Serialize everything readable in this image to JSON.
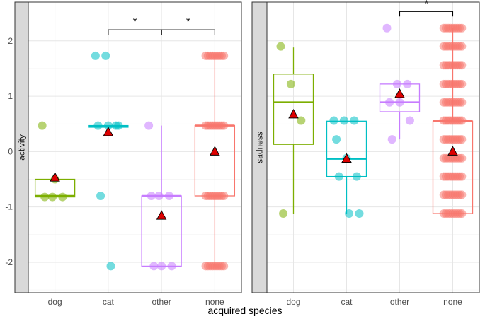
{
  "chart_data": {
    "type": "box",
    "xlabel": "acquired species",
    "categories": [
      "dog",
      "cat",
      "other",
      "none"
    ],
    "colors": {
      "dog": "#7cae00",
      "cat": "#00bfc4",
      "other": "#c77cff",
      "none": "#f8766d"
    },
    "mean_marker_color": "#dd0000",
    "panels": [
      {
        "name": "activity",
        "strip_label": "activity",
        "ylim": [
          -2.55,
          2.7
        ],
        "yticks": [
          -2,
          -1,
          0,
          1,
          2
        ],
        "ytick_labels": [
          "-2",
          "-1",
          "0",
          "1",
          "2"
        ],
        "groups": [
          {
            "category": "dog",
            "q1": -0.82,
            "median": -0.8,
            "q3": -0.5,
            "wlo": -0.82,
            "whi": -0.5,
            "mean": -0.47,
            "points": [
              0.47,
              -0.82,
              -0.82,
              -0.82,
              -0.5
            ]
          },
          {
            "category": "cat",
            "q1": 0.44,
            "median": 0.46,
            "q3": 0.47,
            "wlo": 0.44,
            "whi": 0.47,
            "mean": 0.35,
            "points": [
              1.73,
              1.73,
              0.47,
              0.47,
              0.47,
              0.47,
              -0.8,
              -2.07
            ]
          },
          {
            "category": "other",
            "q1": -2.07,
            "median": -0.8,
            "q3": -0.8,
            "wlo": -2.07,
            "whi": 0.47,
            "mean": -1.16,
            "points": [
              0.47,
              -0.8,
              -0.8,
              -0.8,
              -2.07,
              -2.07,
              -2.07
            ]
          },
          {
            "category": "none",
            "q1": -0.8,
            "median": 0.47,
            "q3": 0.47,
            "wlo": -2.07,
            "whi": 1.73,
            "mean": 0.0,
            "points": [
              1.73,
              0.47,
              -0.8,
              -2.07
            ]
          }
        ],
        "brackets": [
          {
            "from": "cat",
            "to": "other",
            "label": "*"
          },
          {
            "from": "other",
            "to": "none",
            "label": "*"
          }
        ]
      },
      {
        "name": "sadness",
        "strip_label": "sadness",
        "ylim": [
          -2.55,
          2.7
        ],
        "yticks": [],
        "ytick_labels": [],
        "groups": [
          {
            "category": "dog",
            "q1": 0.13,
            "median": 0.89,
            "q3": 1.4,
            "wlo": -1.12,
            "whi": 1.88,
            "mean": 0.67,
            "points": [
              1.9,
              1.22,
              0.56,
              -1.12
            ]
          },
          {
            "category": "cat",
            "q1": -0.45,
            "median": -0.13,
            "q3": 0.55,
            "wlo": -1.12,
            "whi": 0.55,
            "mean": -0.13,
            "points": [
              0.56,
              0.56,
              0.56,
              0.22,
              -0.12,
              -0.45,
              -0.45,
              -1.12,
              -1.12
            ]
          },
          {
            "category": "other",
            "q1": 0.72,
            "median": 0.89,
            "q3": 1.22,
            "wlo": 0.22,
            "whi": 1.22,
            "mean": 1.04,
            "points": [
              2.23,
              1.22,
              1.22,
              0.89,
              0.89,
              0.56,
              0.22
            ]
          },
          {
            "category": "none",
            "q1": -1.12,
            "median": 0.55,
            "q3": 0.55,
            "wlo": -1.12,
            "whi": 2.23,
            "mean": 0.0,
            "points": [
              2.23,
              1.9,
              1.56,
              1.22,
              0.89,
              0.56,
              0.22,
              -0.12,
              -0.45,
              -0.78,
              -1.12
            ]
          }
        ],
        "brackets": [
          {
            "from": "other",
            "to": "none",
            "label": "*"
          }
        ]
      }
    ]
  }
}
